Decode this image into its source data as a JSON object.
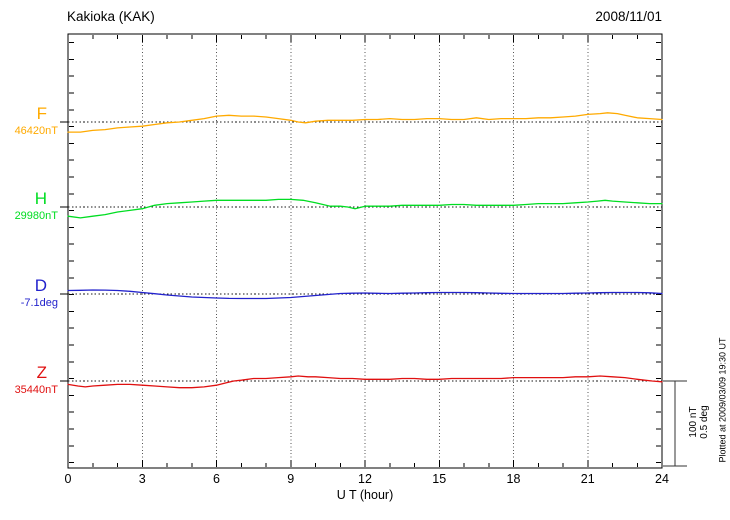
{
  "footer": {
    "plotted_at": "Plotted at 2009/03/09 19:30 UT"
  },
  "chart_data": {
    "type": "line",
    "title": "Kakioka (KAK)",
    "date": "2008/11/01",
    "xlabel": "U T (hour)",
    "xlim": [
      0,
      24
    ],
    "x_ticks": [
      0,
      3,
      6,
      9,
      12,
      15,
      18,
      21,
      24
    ],
    "grid": "dotted vertical lines every 3 hours, dotted horizontal reference line per channel",
    "legend_position": "left margin, one colored label per channel",
    "scale": {
      "nt_label": "100 nT",
      "deg_label": "0.5 deg",
      "nT_per_division": 100,
      "deg_per_division": 0.5
    },
    "series": [
      {
        "name": "F",
        "unit": "nT",
        "ref_value": 46420,
        "ref_label": "46420nT",
        "color": "#FFAA00",
        "points": [
          [
            0,
            46408
          ],
          [
            0.5,
            46408
          ],
          [
            1,
            46410
          ],
          [
            1.5,
            46411
          ],
          [
            2,
            46413
          ],
          [
            2.5,
            46414
          ],
          [
            3,
            46415
          ],
          [
            3.5,
            46417
          ],
          [
            4,
            46419
          ],
          [
            4.5,
            46420
          ],
          [
            5,
            46422
          ],
          [
            5.5,
            46424
          ],
          [
            6,
            46427
          ],
          [
            6.5,
            46428
          ],
          [
            7,
            46427
          ],
          [
            7.5,
            46427
          ],
          [
            8,
            46426
          ],
          [
            8.5,
            46424
          ],
          [
            9,
            46422
          ],
          [
            9.3,
            46420
          ],
          [
            9.6,
            46419
          ],
          [
            10,
            46421
          ],
          [
            10.5,
            46422
          ],
          [
            11,
            46422
          ],
          [
            11.5,
            46422
          ],
          [
            12,
            46423
          ],
          [
            12.5,
            46423
          ],
          [
            13,
            46424
          ],
          [
            13.5,
            46423
          ],
          [
            14,
            46423
          ],
          [
            14.5,
            46424
          ],
          [
            15,
            46424
          ],
          [
            15.5,
            46423
          ],
          [
            16,
            46423
          ],
          [
            16.5,
            46425
          ],
          [
            17,
            46423
          ],
          [
            17.5,
            46424
          ],
          [
            18,
            46424
          ],
          [
            18.5,
            46424
          ],
          [
            19,
            46425
          ],
          [
            19.5,
            46425
          ],
          [
            20,
            46426
          ],
          [
            20.5,
            46427
          ],
          [
            21,
            46429
          ],
          [
            21.5,
            46430
          ],
          [
            21.8,
            46431
          ],
          [
            22.2,
            46430
          ],
          [
            22.5,
            46428
          ],
          [
            23,
            46425
          ],
          [
            23.5,
            46424
          ],
          [
            24,
            46423
          ]
        ]
      },
      {
        "name": "H",
        "unit": "nT",
        "ref_value": 29980,
        "ref_label": "29980nT",
        "color": "#00DD22",
        "points": [
          [
            0,
            29969
          ],
          [
            0.5,
            29967
          ],
          [
            1,
            29969
          ],
          [
            1.5,
            29971
          ],
          [
            2,
            29974
          ],
          [
            2.5,
            29976
          ],
          [
            3,
            29978
          ],
          [
            3.5,
            29982
          ],
          [
            4,
            29984
          ],
          [
            4.5,
            29985
          ],
          [
            5,
            29986
          ],
          [
            5.5,
            29987
          ],
          [
            6,
            29988
          ],
          [
            6.5,
            29988
          ],
          [
            7,
            29988
          ],
          [
            7.5,
            29988
          ],
          [
            8,
            29988
          ],
          [
            8.5,
            29989
          ],
          [
            9,
            29989
          ],
          [
            9.5,
            29988
          ],
          [
            10,
            29985
          ],
          [
            10.3,
            29983
          ],
          [
            10.6,
            29981
          ],
          [
            11,
            29981
          ],
          [
            11.3,
            29980
          ],
          [
            11.6,
            29978
          ],
          [
            12,
            29981
          ],
          [
            12.5,
            29981
          ],
          [
            13,
            29981
          ],
          [
            13.5,
            29982
          ],
          [
            14,
            29982
          ],
          [
            14.5,
            29982
          ],
          [
            15,
            29982
          ],
          [
            15.5,
            29983
          ],
          [
            16,
            29983
          ],
          [
            16.5,
            29982
          ],
          [
            17,
            29982
          ],
          [
            17.5,
            29982
          ],
          [
            18,
            29982
          ],
          [
            18.5,
            29983
          ],
          [
            19,
            29984
          ],
          [
            19.5,
            29984
          ],
          [
            20,
            29984
          ],
          [
            20.5,
            29985
          ],
          [
            21,
            29986
          ],
          [
            21.4,
            29987
          ],
          [
            21.7,
            29988
          ],
          [
            22,
            29987
          ],
          [
            22.5,
            29986
          ],
          [
            23,
            29985
          ],
          [
            23.5,
            29984
          ],
          [
            24,
            29984
          ]
        ]
      },
      {
        "name": "D",
        "unit": "deg",
        "ref_value": -7.1,
        "ref_label": "-7.1deg",
        "color": "#2222CC",
        "points": [
          [
            0,
            -7.079
          ],
          [
            0.5,
            -7.078
          ],
          [
            1,
            -7.076
          ],
          [
            1.5,
            -7.077
          ],
          [
            2,
            -7.079
          ],
          [
            2.5,
            -7.084
          ],
          [
            3,
            -7.091
          ],
          [
            3.5,
            -7.098
          ],
          [
            4,
            -7.106
          ],
          [
            4.5,
            -7.112
          ],
          [
            5,
            -7.118
          ],
          [
            5.5,
            -7.121
          ],
          [
            6,
            -7.124
          ],
          [
            6.5,
            -7.126
          ],
          [
            7,
            -7.127
          ],
          [
            7.5,
            -7.127
          ],
          [
            8,
            -7.127
          ],
          [
            8.5,
            -7.124
          ],
          [
            9,
            -7.121
          ],
          [
            9.5,
            -7.115
          ],
          [
            10,
            -7.109
          ],
          [
            10.5,
            -7.103
          ],
          [
            11,
            -7.097
          ],
          [
            11.5,
            -7.095
          ],
          [
            12,
            -7.094
          ],
          [
            12.5,
            -7.096
          ],
          [
            13,
            -7.097
          ],
          [
            13.5,
            -7.095
          ],
          [
            14,
            -7.094
          ],
          [
            14.5,
            -7.092
          ],
          [
            15,
            -7.091
          ],
          [
            15.5,
            -7.091
          ],
          [
            16,
            -7.091
          ],
          [
            16.5,
            -7.092
          ],
          [
            17,
            -7.094
          ],
          [
            17.5,
            -7.096
          ],
          [
            18,
            -7.097
          ],
          [
            18.5,
            -7.097
          ],
          [
            19,
            -7.097
          ],
          [
            19.5,
            -7.097
          ],
          [
            20,
            -7.097
          ],
          [
            20.5,
            -7.095
          ],
          [
            21,
            -7.094
          ],
          [
            21.5,
            -7.092
          ],
          [
            22,
            -7.091
          ],
          [
            22.5,
            -7.091
          ],
          [
            23,
            -7.091
          ],
          [
            23.5,
            -7.093
          ],
          [
            24,
            -7.097
          ]
        ]
      },
      {
        "name": "Z",
        "unit": "nT",
        "ref_value": 35440,
        "ref_label": "35440nT",
        "color": "#E01010",
        "points": [
          [
            0,
            35436
          ],
          [
            0.4,
            35434
          ],
          [
            0.7,
            35433
          ],
          [
            1,
            35434
          ],
          [
            1.5,
            35435
          ],
          [
            2,
            35436
          ],
          [
            2.5,
            35436
          ],
          [
            3,
            35435
          ],
          [
            3.5,
            35434
          ],
          [
            4,
            35433
          ],
          [
            4.5,
            35432
          ],
          [
            5,
            35432
          ],
          [
            5.5,
            35433
          ],
          [
            6,
            35435
          ],
          [
            6.4,
            35438
          ],
          [
            6.7,
            35440
          ],
          [
            7,
            35441
          ],
          [
            7.5,
            35443
          ],
          [
            8,
            35443
          ],
          [
            8.5,
            35444
          ],
          [
            9,
            35445
          ],
          [
            9.3,
            35446
          ],
          [
            9.7,
            35445
          ],
          [
            10,
            35445
          ],
          [
            10.5,
            35444
          ],
          [
            11,
            35443
          ],
          [
            11.5,
            35443
          ],
          [
            12,
            35442
          ],
          [
            12.5,
            35442
          ],
          [
            13,
            35442
          ],
          [
            13.5,
            35443
          ],
          [
            14,
            35443
          ],
          [
            14.5,
            35442
          ],
          [
            15,
            35442
          ],
          [
            15.5,
            35443
          ],
          [
            16,
            35443
          ],
          [
            16.5,
            35443
          ],
          [
            17,
            35443
          ],
          [
            17.5,
            35443
          ],
          [
            18,
            35444
          ],
          [
            18.5,
            35444
          ],
          [
            19,
            35444
          ],
          [
            19.5,
            35444
          ],
          [
            20,
            35444
          ],
          [
            20.5,
            35445
          ],
          [
            21,
            35445
          ],
          [
            21.5,
            35446
          ],
          [
            22,
            35445
          ],
          [
            22.5,
            35444
          ],
          [
            23,
            35442
          ],
          [
            23.3,
            35441
          ],
          [
            23.6,
            35440
          ],
          [
            24,
            35439
          ]
        ]
      }
    ]
  }
}
